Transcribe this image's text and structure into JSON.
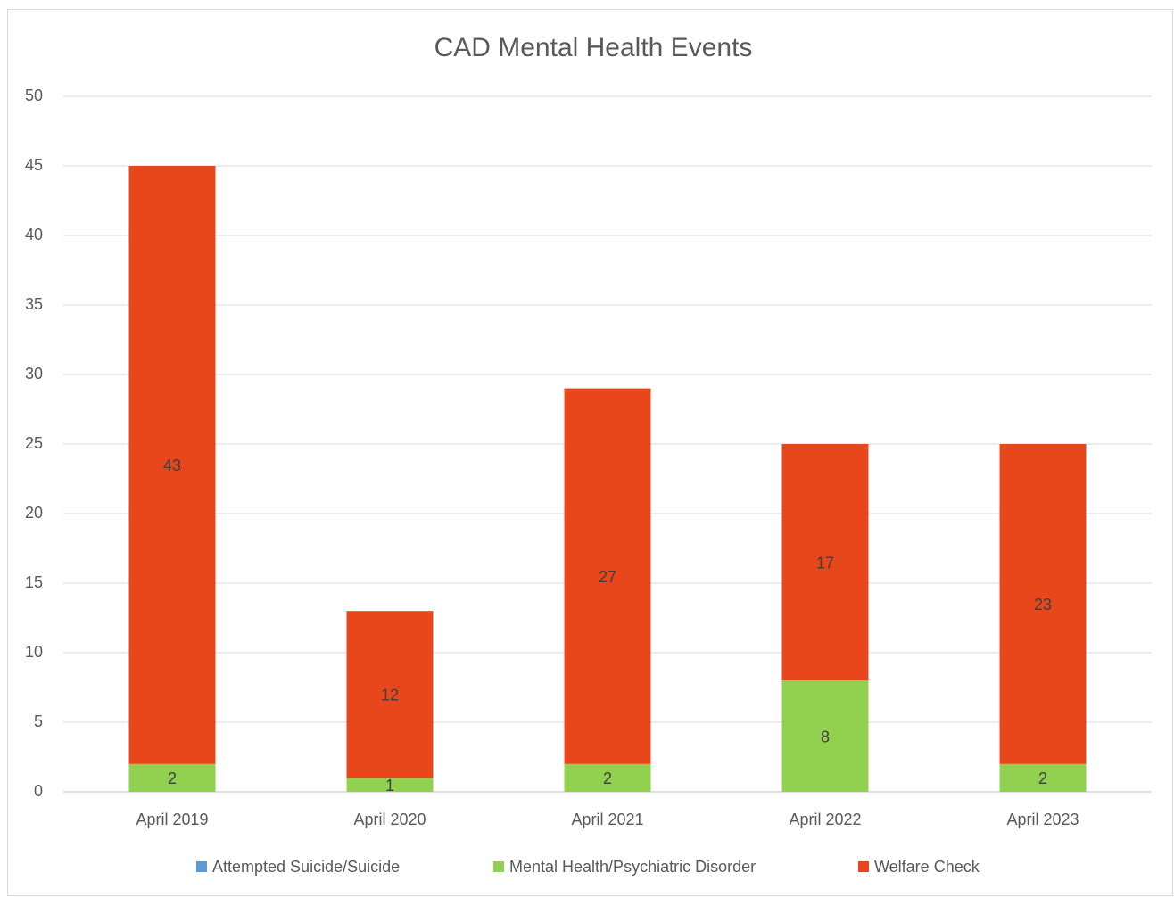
{
  "chart_data": {
    "type": "stacked_bar",
    "title": "CAD Mental Health Events",
    "categories": [
      "April 2019",
      "April 2020",
      "April 2021",
      "April 2022",
      "April 2023"
    ],
    "series": [
      {
        "name": "Attempted Suicide/Suicide",
        "color": "#5b9bd5",
        "values": [
          0,
          0,
          0,
          0,
          0
        ]
      },
      {
        "name": "Mental Health/Psychiatric Disorder",
        "color": "#92d050",
        "values": [
          2,
          1,
          2,
          8,
          2
        ]
      },
      {
        "name": "Welfare Check",
        "color": "#e8471b",
        "values": [
          43,
          12,
          27,
          17,
          23
        ]
      }
    ],
    "ylim": [
      0,
      50
    ],
    "yticks": [
      0,
      5,
      10,
      15,
      20,
      25,
      30,
      35,
      40,
      45,
      50
    ],
    "grid": true,
    "legend": "bottom"
  }
}
